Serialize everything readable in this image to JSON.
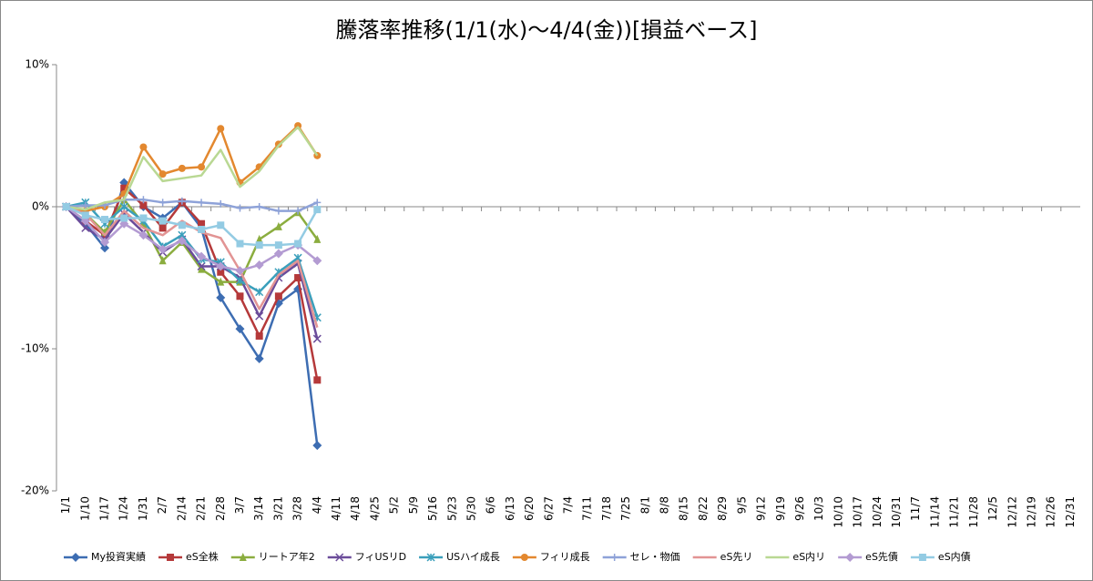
{
  "chart_data": {
    "type": "line",
    "title": "騰落率推移(1/1(水)～4/4(金))[損益ベース]",
    "categories": [
      "1/1",
      "1/10",
      "1/17",
      "1/24",
      "1/31",
      "2/7",
      "2/14",
      "2/21",
      "2/28",
      "3/7",
      "3/14",
      "3/21",
      "3/28",
      "4/4",
      "4/11",
      "4/18",
      "4/25",
      "5/2",
      "5/9",
      "5/16",
      "5/23",
      "5/30",
      "6/6",
      "6/13",
      "6/20",
      "6/27",
      "7/4",
      "7/11",
      "7/18",
      "7/25",
      "8/1",
      "8/8",
      "8/15",
      "8/22",
      "8/29",
      "9/5",
      "9/12",
      "9/19",
      "9/26",
      "10/3",
      "10/10",
      "10/17",
      "10/24",
      "10/31",
      "11/7",
      "11/14",
      "11/21",
      "11/28",
      "12/5",
      "12/12",
      "12/19",
      "12/26",
      "12/31"
    ],
    "ylim": [
      -20,
      10
    ],
    "yticks": [
      {
        "value": -20,
        "label": "-20%"
      },
      {
        "value": -10,
        "label": "-10%"
      },
      {
        "value": 0,
        "label": "0%"
      },
      {
        "value": 10,
        "label": "10%"
      }
    ],
    "grid": false,
    "legend": "bottom",
    "series": [
      {
        "name": "My投資実績",
        "color": "#3d6db2",
        "marker": "diamond",
        "values": [
          0,
          -1.2,
          -2.9,
          1.7,
          0.0,
          -0.8,
          0.3,
          -1.5,
          -6.4,
          -8.6,
          -10.7,
          -6.8,
          -5.8,
          -16.8,
          null,
          null,
          null,
          null,
          null,
          null,
          null,
          null,
          null,
          null,
          null,
          null,
          null,
          null,
          null,
          null,
          null,
          null,
          null,
          null,
          null,
          null,
          null,
          null,
          null,
          null,
          null,
          null,
          null,
          null,
          null,
          null,
          null,
          null,
          null,
          null,
          null,
          null,
          null
        ]
      },
      {
        "name": "eS全株",
        "color": "#b5393a",
        "marker": "square",
        "values": [
          0,
          -1.0,
          -2.0,
          1.3,
          0.1,
          -1.5,
          0.3,
          -1.2,
          -4.6,
          -6.3,
          -9.1,
          -6.3,
          -5.0,
          -12.2,
          null,
          null,
          null,
          null,
          null,
          null,
          null,
          null,
          null,
          null,
          null,
          null,
          null,
          null,
          null,
          null,
          null,
          null,
          null,
          null,
          null,
          null,
          null,
          null,
          null,
          null,
          null,
          null,
          null,
          null,
          null,
          null,
          null,
          null,
          null,
          null,
          null,
          null,
          null
        ]
      },
      {
        "name": "リートア年2",
        "color": "#8bad3f",
        "marker": "triangle",
        "values": [
          0,
          -0.5,
          -1.8,
          0.5,
          -1.2,
          -3.8,
          -2.5,
          -4.4,
          -5.3,
          -5.3,
          -2.3,
          -1.4,
          -0.4,
          -2.3,
          null,
          null,
          null,
          null,
          null,
          null,
          null,
          null,
          null,
          null,
          null,
          null,
          null,
          null,
          null,
          null,
          null,
          null,
          null,
          null,
          null,
          null,
          null,
          null,
          null,
          null,
          null,
          null,
          null,
          null,
          null,
          null,
          null,
          null,
          null,
          null,
          null,
          null,
          null
        ]
      },
      {
        "name": "フィUSリD",
        "color": "#6b4c9a",
        "marker": "x",
        "values": [
          0,
          -1.5,
          -2.3,
          -0.5,
          -1.8,
          -3.2,
          -2.3,
          -4.2,
          -4.2,
          -5.0,
          -7.7,
          -5.0,
          -4.0,
          -9.3,
          null,
          null,
          null,
          null,
          null,
          null,
          null,
          null,
          null,
          null,
          null,
          null,
          null,
          null,
          null,
          null,
          null,
          null,
          null,
          null,
          null,
          null,
          null,
          null,
          null,
          null,
          null,
          null,
          null,
          null,
          null,
          null,
          null,
          null,
          null,
          null,
          null,
          null,
          null
        ]
      },
      {
        "name": "USハイ成長",
        "color": "#3a9fbb",
        "marker": "star",
        "values": [
          0,
          0.3,
          -1.2,
          0,
          -1.0,
          -2.8,
          -2.0,
          -3.7,
          -3.9,
          -5.2,
          -6.0,
          -4.6,
          -3.6,
          -7.8,
          null,
          null,
          null,
          null,
          null,
          null,
          null,
          null,
          null,
          null,
          null,
          null,
          null,
          null,
          null,
          null,
          null,
          null,
          null,
          null,
          null,
          null,
          null,
          null,
          null,
          null,
          null,
          null,
          null,
          null,
          null,
          null,
          null,
          null,
          null,
          null,
          null,
          null,
          null
        ]
      },
      {
        "name": "フィリ成長",
        "color": "#e3882f",
        "marker": "circle",
        "values": [
          0,
          -0.3,
          0,
          0.9,
          4.2,
          2.3,
          2.7,
          2.8,
          5.5,
          1.7,
          2.8,
          4.4,
          5.7,
          3.6,
          null,
          null,
          null,
          null,
          null,
          null,
          null,
          null,
          null,
          null,
          null,
          null,
          null,
          null,
          null,
          null,
          null,
          null,
          null,
          null,
          null,
          null,
          null,
          null,
          null,
          null,
          null,
          null,
          null,
          null,
          null,
          null,
          null,
          null,
          null,
          null,
          null,
          null,
          null
        ]
      },
      {
        "name": "セレ・物価",
        "color": "#8ea2d8",
        "marker": "plus",
        "values": [
          0,
          0.1,
          0.1,
          0.5,
          0.5,
          0.3,
          0.4,
          0.3,
          0.2,
          -0.1,
          0,
          -0.3,
          -0.3,
          0.3,
          null,
          null,
          null,
          null,
          null,
          null,
          null,
          null,
          null,
          null,
          null,
          null,
          null,
          null,
          null,
          null,
          null,
          null,
          null,
          null,
          null,
          null,
          null,
          null,
          null,
          null,
          null,
          null,
          null,
          null,
          null,
          null,
          null,
          null,
          null,
          null,
          null,
          null,
          null
        ]
      },
      {
        "name": "eS先リ",
        "color": "#e29494",
        "marker": "none",
        "values": [
          0,
          -0.5,
          -2.0,
          -0.3,
          -1.5,
          -2.0,
          -1.0,
          -1.8,
          -2.2,
          -4.5,
          -7.2,
          -4.8,
          -3.8,
          -8.5,
          null,
          null,
          null,
          null,
          null,
          null,
          null,
          null,
          null,
          null,
          null,
          null,
          null,
          null,
          null,
          null,
          null,
          null,
          null,
          null,
          null,
          null,
          null,
          null,
          null,
          null,
          null,
          null,
          null,
          null,
          null,
          null,
          null,
          null,
          null,
          null,
          null,
          null,
          null
        ]
      },
      {
        "name": "eS内リ",
        "color": "#b9d893",
        "marker": "none",
        "values": [
          0,
          -0.2,
          0.3,
          0.5,
          3.5,
          1.8,
          2.0,
          2.2,
          4.0,
          1.4,
          2.5,
          4.3,
          5.6,
          3.6,
          null,
          null,
          null,
          null,
          null,
          null,
          null,
          null,
          null,
          null,
          null,
          null,
          null,
          null,
          null,
          null,
          null,
          null,
          null,
          null,
          null,
          null,
          null,
          null,
          null,
          null,
          null,
          null,
          null,
          null,
          null,
          null,
          null,
          null,
          null,
          null,
          null,
          null,
          null
        ]
      },
      {
        "name": "eS先債",
        "color": "#b39bd2",
        "marker": "diamond",
        "values": [
          0,
          -1.0,
          -2.5,
          -1.2,
          -2.0,
          -3.0,
          -2.4,
          -3.5,
          -4.2,
          -4.5,
          -4.1,
          -3.3,
          -2.7,
          -3.8,
          null,
          null,
          null,
          null,
          null,
          null,
          null,
          null,
          null,
          null,
          null,
          null,
          null,
          null,
          null,
          null,
          null,
          null,
          null,
          null,
          null,
          null,
          null,
          null,
          null,
          null,
          null,
          null,
          null,
          null,
          null,
          null,
          null,
          null,
          null,
          null,
          null,
          null,
          null
        ]
      },
      {
        "name": "eS内債",
        "color": "#93cbe3",
        "marker": "square",
        "values": [
          0,
          -0.6,
          -0.9,
          -0.8,
          -0.8,
          -1.0,
          -1.3,
          -1.6,
          -1.3,
          -2.6,
          -2.7,
          -2.7,
          -2.6,
          -0.2,
          null,
          null,
          null,
          null,
          null,
          null,
          null,
          null,
          null,
          null,
          null,
          null,
          null,
          null,
          null,
          null,
          null,
          null,
          null,
          null,
          null,
          null,
          null,
          null,
          null,
          null,
          null,
          null,
          null,
          null,
          null,
          null,
          null,
          null,
          null,
          null,
          null,
          null,
          null
        ]
      }
    ]
  }
}
